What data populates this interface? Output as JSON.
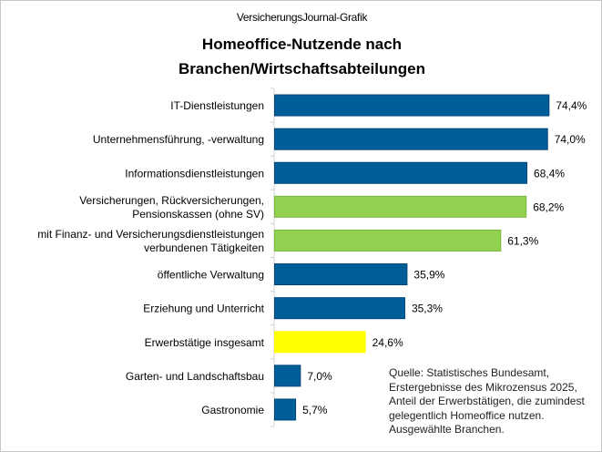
{
  "header": {
    "source_label": "VersicherungsJournal-Grafik",
    "title": "Homeoffice-Nutzende  nach\nBranchen/Wirtschaftsabteilungen"
  },
  "note": "Quelle: Statistisches Bundesamt, Erstergebnisse des Mikrozensus 2025, Anteil der Erwerbstätigen, die zumindest gelegentlich Homeoffice nutzen. Ausgewählte Branchen.",
  "chart_data": {
    "type": "bar",
    "orientation": "horizontal",
    "title": "Homeoffice-Nutzende nach Branchen/Wirtschaftsabteilungen",
    "categories": [
      "IT-Dienstleistungen",
      "Unternehmensführung, -verwaltung",
      "Informationsdienstleistungen",
      "Versicherungen, Rückversicherungen,\nPensionskassen (ohne SV)",
      "mit Finanz- und Versicherungsdienstleistungen\nverbundenen Tätigkeiten",
      "öffentliche Verwaltung",
      "Erziehung und Unterricht",
      "Erwerbstätige insgesamt",
      "Garten- und Landschaftsbau",
      "Gastronomie"
    ],
    "values": [
      74.4,
      74.0,
      68.4,
      68.2,
      61.3,
      35.9,
      35.3,
      24.6,
      7.0,
      5.7
    ],
    "data_labels": [
      "74,4%",
      "74,0%",
      "68,4%",
      "68,2%",
      "61,3%",
      "35,9%",
      "35,3%",
      "24,6%",
      "7,0%",
      "5,7%"
    ],
    "bar_colors": [
      "#005f99",
      "#005f99",
      "#005f99",
      "#92d050",
      "#92d050",
      "#005f99",
      "#005f99",
      "#ffff00",
      "#005f99",
      "#005f99"
    ],
    "xlim": [
      0,
      80
    ],
    "grid": false,
    "legend": "none"
  }
}
